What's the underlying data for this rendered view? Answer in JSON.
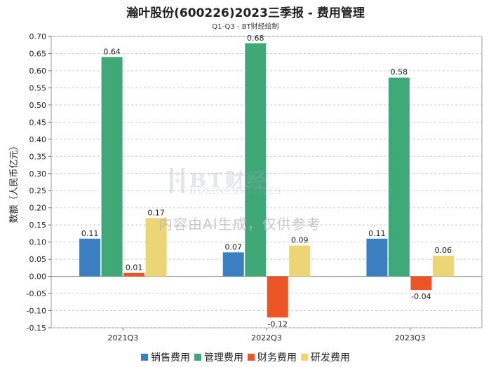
{
  "title": "瀚叶股份(600226)2023三季报 - 费用管理",
  "subtitle": "Q1-Q3 - BT财经绘制",
  "watermark": {
    "brand": "BT财经",
    "sub": "BUSINESSTIMES",
    "note": "内容由AI生成，仅供参考"
  },
  "chart_data": {
    "type": "bar",
    "title": "瀚叶股份(600226)2023三季报 - 费用管理",
    "subtitle": "Q1-Q3 - BT财经绘制",
    "xlabel": "",
    "ylabel": "数额（人民币亿元）",
    "categories": [
      "2021Q3",
      "2022Q3",
      "2023Q3"
    ],
    "series": [
      {
        "name": "销售费用",
        "color": "#3a80c0",
        "values": [
          0.11,
          0.07,
          0.11
        ],
        "labels": [
          "0.11",
          "0.07",
          "0.11"
        ]
      },
      {
        "name": "管理费用",
        "color": "#3fa877",
        "values": [
          0.64,
          0.68,
          0.58
        ],
        "labels": [
          "0.64",
          "0.68",
          "0.58"
        ]
      },
      {
        "name": "财务费用",
        "color": "#ee5526",
        "values": [
          0.01,
          -0.12,
          -0.04
        ],
        "labels": [
          "0.01",
          "-0.12",
          "-0.04"
        ]
      },
      {
        "name": "研发费用",
        "color": "#ecd574",
        "values": [
          0.17,
          0.09,
          0.06
        ],
        "labels": [
          "0.17",
          "0.09",
          "0.06"
        ]
      }
    ],
    "ylim": [
      -0.15,
      0.7
    ],
    "yticks": [
      "-0.15",
      "-0.10",
      "-0.05",
      "0.00",
      "0.05",
      "0.10",
      "0.15",
      "0.20",
      "0.25",
      "0.30",
      "0.35",
      "0.40",
      "0.45",
      "0.50",
      "0.55",
      "0.60",
      "0.65",
      "0.70"
    ],
    "grid": true,
    "legend": "bottom"
  }
}
